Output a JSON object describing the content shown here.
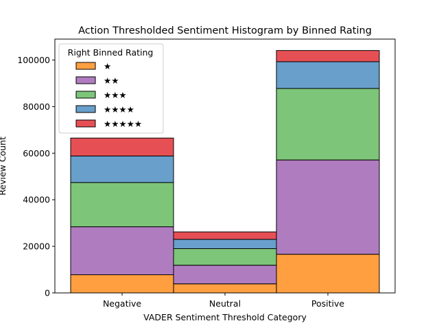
{
  "chart_data": {
    "type": "bar",
    "stacked": true,
    "title": "Action Thresholded Sentiment Histogram by Binned Rating",
    "xlabel": "VADER Sentiment Threshold Category",
    "ylabel": "Review Count",
    "categories": [
      "Negative",
      "Neutral",
      "Positive"
    ],
    "ylim": [
      0,
      109000
    ],
    "yticks": [
      0,
      20000,
      40000,
      60000,
      80000,
      100000
    ],
    "ytick_labels": [
      "0",
      "20000",
      "40000",
      "60000",
      "80000",
      "100000"
    ],
    "grid": false,
    "legend": {
      "title": "Right Binned Rating",
      "placement": "top-left"
    },
    "series": [
      {
        "name": "★",
        "color": "#ff9f40",
        "values": [
          7800,
          3900,
          16600
        ]
      },
      {
        "name": "★★",
        "color": "#b07cc0",
        "values": [
          20600,
          8000,
          40500
        ]
      },
      {
        "name": "★★★",
        "color": "#7dc579",
        "values": [
          19000,
          7100,
          30700
        ]
      },
      {
        "name": "★★★★",
        "color": "#689fcb",
        "values": [
          11400,
          4000,
          11500
        ]
      },
      {
        "name": "★★★★★",
        "color": "#e65055",
        "values": [
          7700,
          3200,
          4800
        ]
      }
    ]
  }
}
